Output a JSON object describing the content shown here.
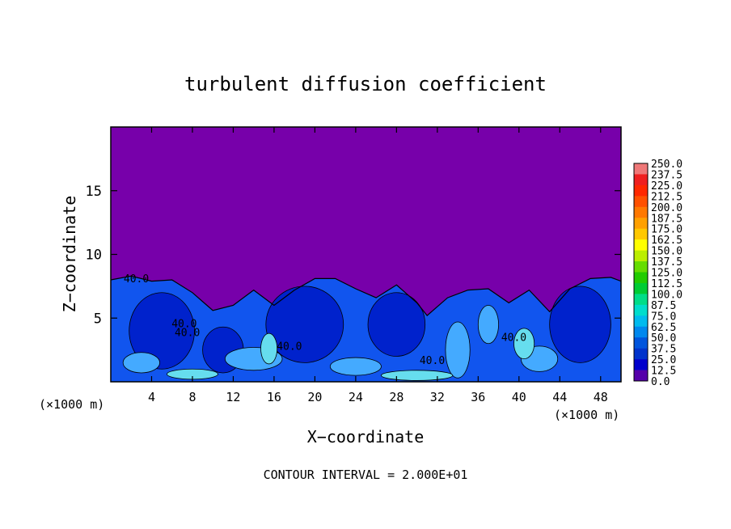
{
  "chart_data": {
    "type": "heatmap",
    "title": "turbulent diffusion coefficient",
    "xlabel": "X−coordinate",
    "ylabel": "Z−coordinate",
    "x_unit_left": "(×1000 m)",
    "x_unit_right": "(×1000 m)",
    "xlim": [
      0,
      50
    ],
    "ylim": [
      0,
      20
    ],
    "x_ticks": [
      4,
      8,
      12,
      16,
      20,
      24,
      28,
      32,
      36,
      40,
      44,
      48
    ],
    "y_ticks": [
      5,
      10,
      15
    ],
    "contour_interval_text": "CONTOUR INTERVAL = 2.000E+01",
    "contour_labels": [
      {
        "text": "40.0",
        "x": 2.5,
        "z": 7.8
      },
      {
        "text": "40.0",
        "x": 7.5,
        "z": 3.6
      },
      {
        "text": "40.0",
        "x": 7.2,
        "z": 4.3
      },
      {
        "text": "40.0",
        "x": 17.5,
        "z": 2.5
      },
      {
        "text": "40.0",
        "x": 31.5,
        "z": 1.4
      },
      {
        "text": "40.0",
        "x": 39.5,
        "z": 3.2
      }
    ],
    "boundary_layer_top": [
      [
        0,
        8.0
      ],
      [
        2,
        8.3
      ],
      [
        4,
        7.9
      ],
      [
        6,
        8.0
      ],
      [
        8,
        7.0
      ],
      [
        10,
        5.6
      ],
      [
        12,
        6.0
      ],
      [
        14,
        7.2
      ],
      [
        16,
        6.0
      ],
      [
        18,
        7.2
      ],
      [
        20,
        8.1
      ],
      [
        22,
        8.1
      ],
      [
        24,
        7.3
      ],
      [
        26,
        6.6
      ],
      [
        28,
        7.6
      ],
      [
        30,
        6.2
      ],
      [
        31,
        5.2
      ],
      [
        33,
        6.6
      ],
      [
        35,
        7.2
      ],
      [
        37,
        7.3
      ],
      [
        39,
        6.2
      ],
      [
        41,
        7.2
      ],
      [
        43,
        5.5
      ],
      [
        45,
        7.3
      ],
      [
        47,
        8.1
      ],
      [
        49,
        8.2
      ],
      [
        50,
        7.9
      ]
    ],
    "colorbar": {
      "levels": [
        "250.0",
        "237.5",
        "225.0",
        "212.5",
        "200.0",
        "187.5",
        "175.0",
        "162.5",
        "150.0",
        "137.5",
        "125.0",
        "112.5",
        "100.0",
        "87.5",
        "75.0",
        "62.5",
        "50.0",
        "37.5",
        "25.0",
        "12.5",
        "0.0"
      ],
      "colors": [
        "#ef7878",
        "#ef2020",
        "#ff2800",
        "#ff5000",
        "#ff7800",
        "#ffa000",
        "#ffc800",
        "#ffff00",
        "#bbee00",
        "#66dd00",
        "#22cc00",
        "#00cc33",
        "#00dd88",
        "#00ddcc",
        "#00bbee",
        "#0088ee",
        "#0055dd",
        "#0033cc",
        "#0000cc",
        "#5500aa"
      ]
    },
    "background_color": "#7700aa",
    "layer_colors": {
      "deep": "#0022cc",
      "mid": "#1155ee",
      "light": "#44aaff",
      "cyan": "#66ddee"
    }
  }
}
